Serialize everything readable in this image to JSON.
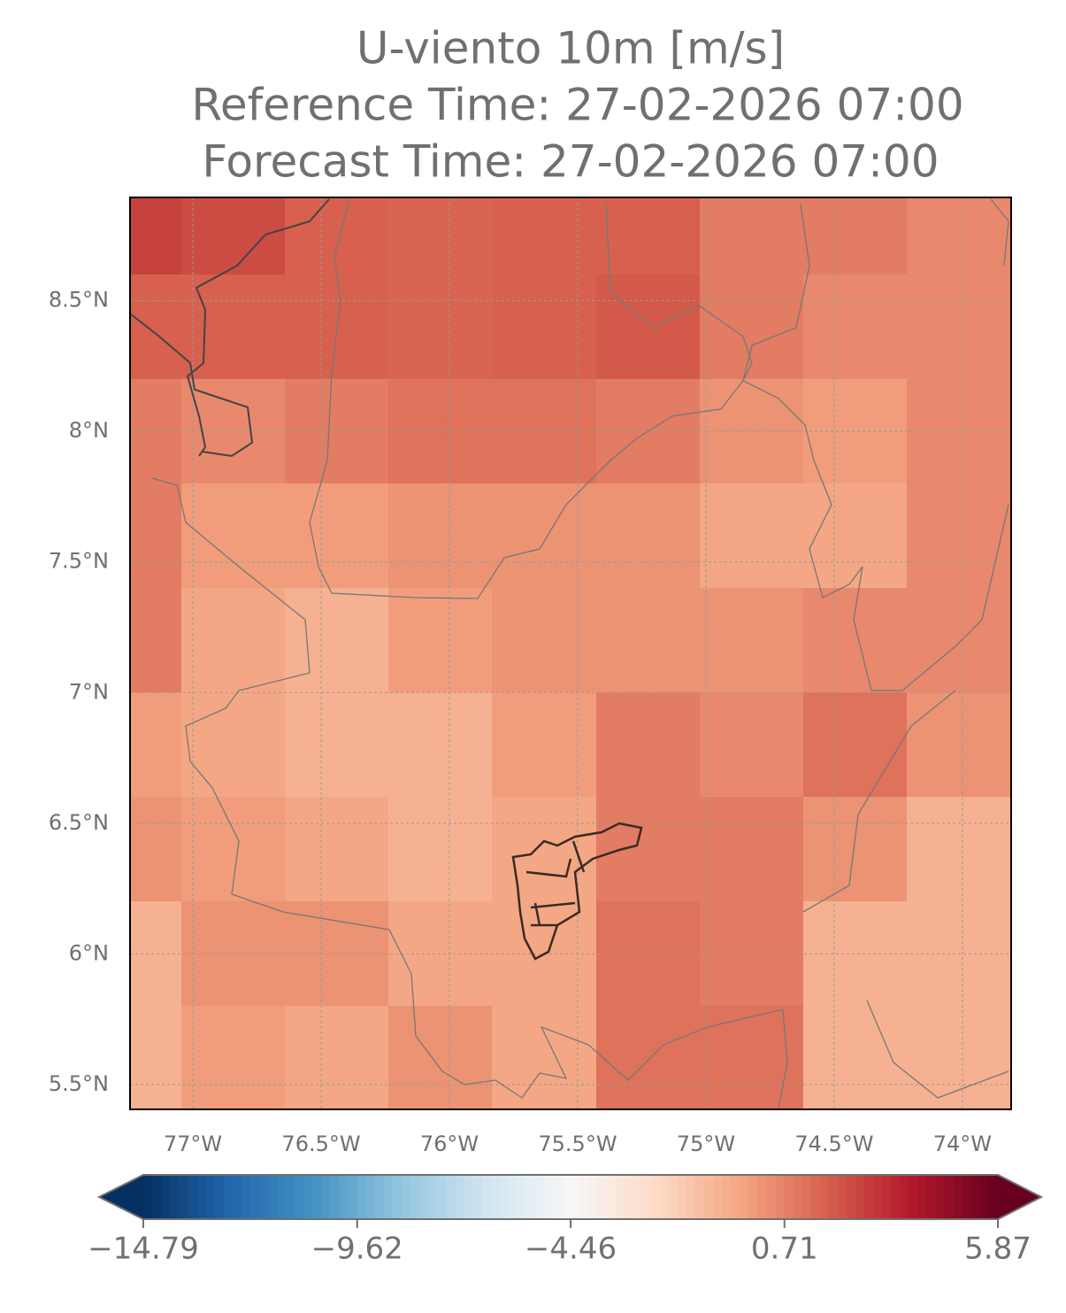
{
  "chart_data": {
    "type": "heatmap-map",
    "title": [
      "U-viento 10m [m/s]",
      "Reference Time: 27-02-2026 07:00",
      "Forecast Time: 27-02-2026 07:00"
    ],
    "xlim": [
      -77.245,
      -73.81
    ],
    "ylim": [
      5.405,
      8.895
    ],
    "xticks": [
      {
        "value": -77,
        "label": "77°W"
      },
      {
        "value": -76.5,
        "label": "76.5°W"
      },
      {
        "value": -76,
        "label": "76°W"
      },
      {
        "value": -75.5,
        "label": "75.5°W"
      },
      {
        "value": -75,
        "label": "75°W"
      },
      {
        "value": -74.5,
        "label": "74.5°W"
      },
      {
        "value": -74,
        "label": "74°W"
      }
    ],
    "yticks": [
      {
        "value": 8.5,
        "label": "8.5°N"
      },
      {
        "value": 8,
        "label": "8°N"
      },
      {
        "value": 7.5,
        "label": "7.5°N"
      },
      {
        "value": 7,
        "label": "7°N"
      },
      {
        "value": 6.5,
        "label": "6.5°N"
      },
      {
        "value": 6,
        "label": "6°N"
      },
      {
        "value": 5.5,
        "label": "5.5°N"
      }
    ],
    "grid": true,
    "colormap": [
      "#053061",
      "#2166ac",
      "#4393c3",
      "#92c5de",
      "#d1e5f0",
      "#f7f7f7",
      "#fddbc7",
      "#f4a582",
      "#d6604d",
      "#b2182b",
      "#67001f"
    ],
    "clim": [
      -14.79,
      5.87
    ],
    "cticks": [
      {
        "value": -14.79,
        "label": "−14.79"
      },
      {
        "value": -9.62,
        "label": "−9.62"
      },
      {
        "value": -4.46,
        "label": "−4.46"
      },
      0.71,
      5.87
    ],
    "values": [
      [
        2.6,
        2.3,
        1.7,
        1.6,
        1.7,
        1.7,
        0.9,
        0.9,
        0.5
      ],
      [
        1.7,
        1.7,
        1.7,
        1.6,
        1.7,
        1.9,
        0.9,
        0.5,
        0.5
      ],
      [
        0.9,
        0.5,
        0.9,
        1.2,
        1.2,
        0.9,
        0.2,
        -0.1,
        0.5
      ],
      [
        0.9,
        -0.1,
        -0.1,
        0.2,
        0.2,
        0.2,
        -0.4,
        -0.4,
        0.5
      ],
      [
        0.9,
        -0.4,
        -0.8,
        -0.1,
        0.2,
        0.2,
        0.2,
        0.5,
        0.5
      ],
      [
        -0.1,
        -0.4,
        -0.8,
        -0.8,
        -0.1,
        0.9,
        0.5,
        1.2,
        0.2
      ],
      [
        0.2,
        -0.1,
        -0.4,
        -0.8,
        -0.4,
        0.9,
        0.9,
        0.2,
        -0.8
      ],
      [
        -0.8,
        0.2,
        0.2,
        -0.4,
        -0.4,
        1.2,
        0.9,
        -0.8,
        -0.8
      ],
      [
        -0.8,
        -0.1,
        -0.4,
        0.2,
        -0.4,
        1.2,
        1.2,
        -0.8,
        -0.8
      ]
    ]
  }
}
